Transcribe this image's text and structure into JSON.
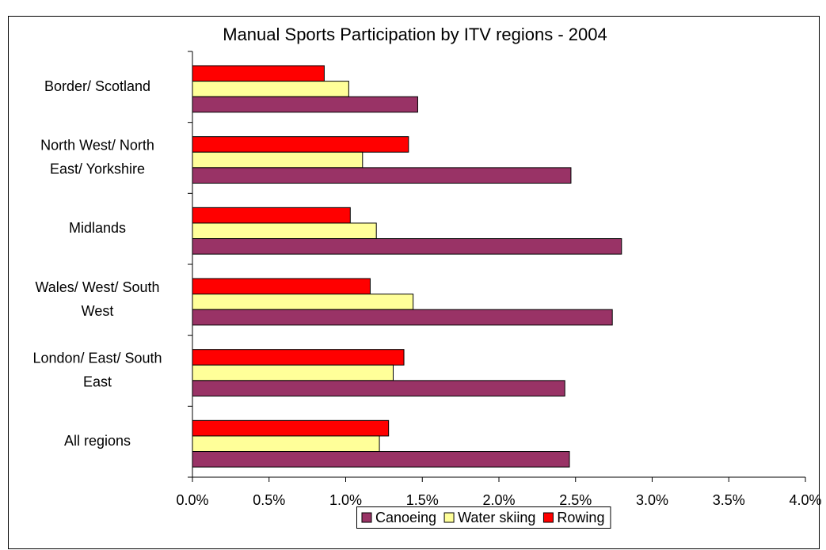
{
  "chart_data": {
    "type": "hbar",
    "title": "Manual Sports Participation by ITV regions - 2004",
    "categories": [
      "Border/ Scotland",
      "North West/ North East/ Yorkshire",
      "Midlands",
      "Wales/ West/ South West",
      "London/ East/ South East",
      "All regions"
    ],
    "series": [
      {
        "name": "Canoeing",
        "color": "#993366",
        "values": [
          1.47,
          2.47,
          2.8,
          2.74,
          2.43,
          2.46
        ]
      },
      {
        "name": "Water skiing",
        "color": "#ffff99",
        "values": [
          1.02,
          1.11,
          1.2,
          1.44,
          1.31,
          1.22
        ]
      },
      {
        "name": "Rowing",
        "color": "#ff0000",
        "values": [
          0.86,
          1.41,
          1.03,
          1.16,
          1.38,
          1.28
        ]
      }
    ],
    "xlim": [
      0,
      4
    ],
    "xticks": [
      {
        "value": 0,
        "label": "0.0%"
      },
      {
        "value": 0.5,
        "label": "0.5%"
      },
      {
        "value": 1,
        "label": "1.0%"
      },
      {
        "value": 1.5,
        "label": "1.5%"
      },
      {
        "value": 2,
        "label": "2.0%"
      },
      {
        "value": 2.5,
        "label": "2.5%"
      },
      {
        "value": 3,
        "label": "3.0%"
      },
      {
        "value": 3.5,
        "label": "3.5%"
      },
      {
        "value": 4,
        "label": "4.0%"
      }
    ],
    "grid": false,
    "legend": "bottom"
  }
}
